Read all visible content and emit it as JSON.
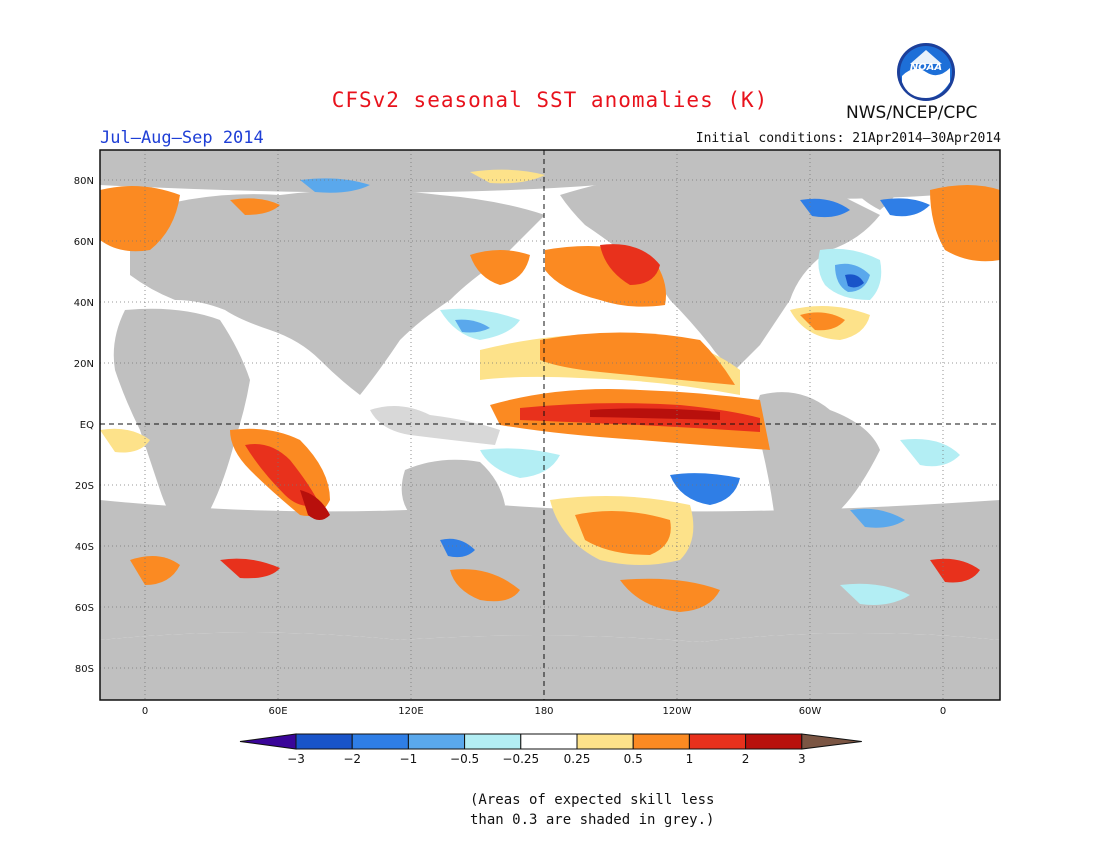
{
  "header": {
    "title": "CFSv2 seasonal SST anomalies (K)",
    "season": "Jul–Aug–Sep 2014",
    "initial_conditions": "Initial conditions: 21Apr2014–30Apr2014",
    "agency": "NWS/NCEP/CPC",
    "logo_text": "NOAA"
  },
  "map": {
    "projection": "cylindrical equidistant",
    "land_color": "#c0c0c0",
    "low_skill_color": "#c0c0c0",
    "lat_labels": [
      "80N",
      "60N",
      "40N",
      "20N",
      "EQ",
      "20S",
      "40S",
      "60S",
      "80S"
    ],
    "lon_labels": [
      "0",
      "60E",
      "120E",
      "180",
      "120W",
      "60W",
      "0"
    ],
    "reference_lines": [
      "EQ",
      "180"
    ]
  },
  "legend": {
    "tick_labels": [
      "−3",
      "−2",
      "−1",
      "−0.5",
      "−0.25",
      "0.25",
      "0.5",
      "1",
      "2",
      "3"
    ],
    "colors": [
      "#3a0599",
      "#1954c9",
      "#2f7ee6",
      "#5aa8ec",
      "#b3eef4",
      "#ffffff",
      "#fde28a",
      "#fb8a22",
      "#e8311c",
      "#b8100c",
      "#7b5543"
    ]
  },
  "footnote": {
    "line1": "(Areas of expected skill less",
    "line2": "than 0.3 are shaded in grey.)"
  }
}
